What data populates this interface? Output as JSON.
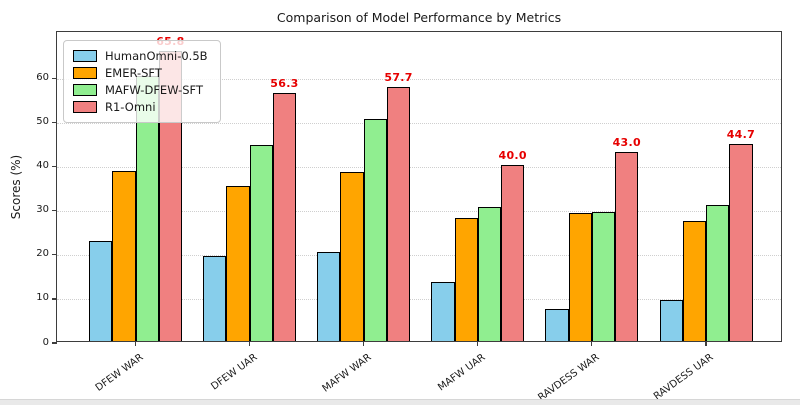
{
  "chart_data": {
    "type": "bar",
    "title": "Comparison of Model Performance by Metrics",
    "xlabel": "",
    "ylabel": "Scores (%)",
    "categories": [
      "DFEW WAR",
      "DFEW UAR",
      "MAFW WAR",
      "MAFW UAR",
      "RAVDESS WAR",
      "RAVDESS UAR"
    ],
    "series": [
      {
        "name": "HumanOmni-0.5B",
        "color": "#87CEEB",
        "values": [
          22.6,
          19.4,
          20.2,
          13.5,
          7.3,
          9.4
        ]
      },
      {
        "name": "EMER-SFT",
        "color": "#FFA500",
        "values": [
          38.7,
          35.3,
          38.4,
          28.0,
          29.0,
          27.2
        ]
      },
      {
        "name": "MAFW-DFEW-SFT",
        "color": "#90EE90",
        "values": [
          60.2,
          44.4,
          50.4,
          30.4,
          29.3,
          30.8
        ]
      },
      {
        "name": "R1-Omni",
        "color": "#F08080",
        "values": [
          65.8,
          56.3,
          57.7,
          40.0,
          43.0,
          44.7
        ],
        "labeled": true,
        "label_color": "#e60000",
        "value_labels": [
          "65.8",
          "56.3",
          "57.7",
          "40.0",
          "43.0",
          "44.7"
        ]
      }
    ],
    "yticks": [
      0,
      10,
      20,
      30,
      40,
      50,
      60
    ],
    "ylim": [
      0,
      70.6
    ],
    "grid": "horizontal-dotted",
    "legend_position": "upper-left",
    "bar_edge_color": "#000000"
  }
}
